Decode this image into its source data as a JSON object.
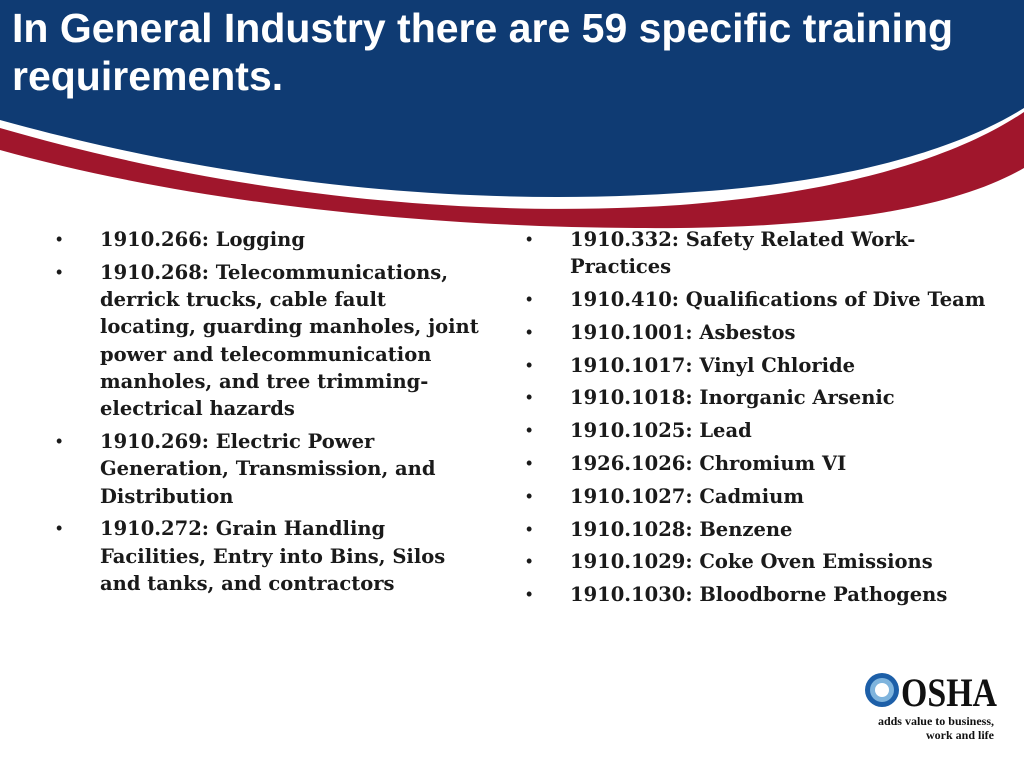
{
  "title": "In General Industry there are 59 specific training requirements.",
  "colors": {
    "banner_blue": "#0f3b73",
    "banner_red": "#a0162c",
    "logo_blue": "#1d5fa8",
    "logo_light_blue": "#7fb4dd"
  },
  "left_items": [
    "1910.266:  Logging",
    "1910.268: Telecommunications, derrick trucks, cable fault locating, guarding manholes, joint power and telecommunication manholes, and tree trimming-electrical hazards",
    "1910.269:  Electric Power Generation, Transmission, and Distribution",
    "1910.272:  Grain Handling Facilities, Entry into Bins, Silos and tanks, and contractors"
  ],
  "right_items": [
    "1910.332:  Safety Related Work-Practices",
    "1910.410: Qualifications of Dive Team",
    "1910.1001:  Asbestos",
    "1910.1017: Vinyl Chloride",
    "1910.1018: Inorganic Arsenic",
    "1910.1025: Lead",
    "1926.1026: Chromium VI",
    "1910.1027: Cadmium",
    "1910.1028: Benzene",
    "1910.1029: Coke Oven Emissions",
    "1910.1030: Bloodborne Pathogens"
  ],
  "bullet_char": "•",
  "logo": {
    "wordmark": "OSHA",
    "tagline_line1": "adds value to business,",
    "tagline_line2": "work and life"
  }
}
